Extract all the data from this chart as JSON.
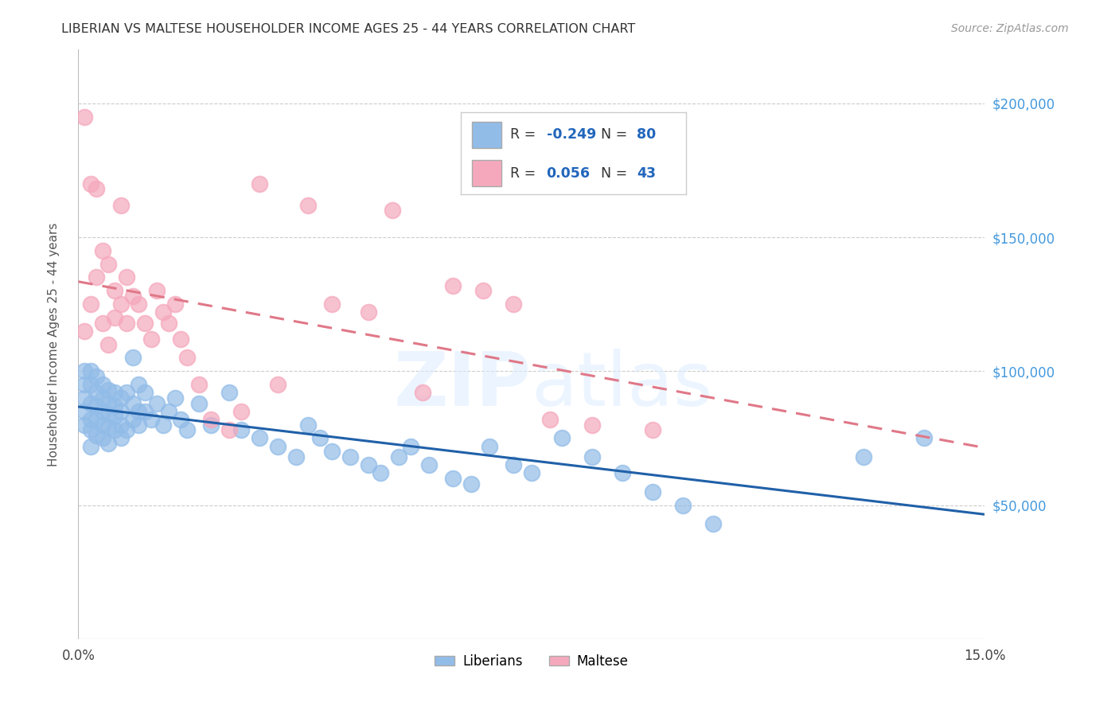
{
  "title": "LIBERIAN VS MALTESE HOUSEHOLDER INCOME AGES 25 - 44 YEARS CORRELATION CHART",
  "source": "Source: ZipAtlas.com",
  "ylabel_label": "Householder Income Ages 25 - 44 years",
  "ylabel_ticks": [
    0,
    50000,
    100000,
    150000,
    200000
  ],
  "ylabel_tick_labels": [
    "",
    "$50,000",
    "$100,000",
    "$150,000",
    "$200,000"
  ],
  "xmin": 0.0,
  "xmax": 0.15,
  "ymin": 0,
  "ymax": 220000,
  "liberian_R": -0.249,
  "liberian_N": 80,
  "maltese_R": 0.056,
  "maltese_N": 43,
  "liberian_color": "#92bce8",
  "maltese_color": "#f5a8bc",
  "liberian_line_color": "#2060a8",
  "maltese_line_color": "#e07888",
  "legend_label_1": "Liberians",
  "legend_label_2": "Maltese",
  "background_color": "#ffffff",
  "grid_color": "#cccccc",
  "watermark_zip": "ZIP",
  "watermark_atlas": "atlas",
  "liberian_x": [
    0.001,
    0.001,
    0.001,
    0.001,
    0.001,
    0.002,
    0.002,
    0.002,
    0.002,
    0.002,
    0.002,
    0.003,
    0.003,
    0.003,
    0.003,
    0.003,
    0.004,
    0.004,
    0.004,
    0.004,
    0.004,
    0.005,
    0.005,
    0.005,
    0.005,
    0.005,
    0.006,
    0.006,
    0.006,
    0.006,
    0.007,
    0.007,
    0.007,
    0.007,
    0.008,
    0.008,
    0.009,
    0.009,
    0.009,
    0.01,
    0.01,
    0.01,
    0.011,
    0.011,
    0.012,
    0.013,
    0.014,
    0.015,
    0.016,
    0.017,
    0.018,
    0.02,
    0.022,
    0.025,
    0.027,
    0.03,
    0.033,
    0.036,
    0.038,
    0.04,
    0.042,
    0.045,
    0.048,
    0.05,
    0.053,
    0.055,
    0.058,
    0.062,
    0.065,
    0.068,
    0.072,
    0.075,
    0.08,
    0.085,
    0.09,
    0.095,
    0.1,
    0.105,
    0.13,
    0.14
  ],
  "liberian_y": [
    100000,
    95000,
    90000,
    85000,
    80000,
    100000,
    95000,
    88000,
    82000,
    78000,
    72000,
    98000,
    92000,
    87000,
    82000,
    76000,
    95000,
    90000,
    85000,
    80000,
    75000,
    93000,
    88000,
    84000,
    79000,
    73000,
    92000,
    87000,
    83000,
    78000,
    90000,
    85000,
    80000,
    75000,
    92000,
    78000,
    105000,
    88000,
    82000,
    95000,
    85000,
    80000,
    92000,
    85000,
    82000,
    88000,
    80000,
    85000,
    90000,
    82000,
    78000,
    88000,
    80000,
    92000,
    78000,
    75000,
    72000,
    68000,
    80000,
    75000,
    70000,
    68000,
    65000,
    62000,
    68000,
    72000,
    65000,
    60000,
    58000,
    72000,
    65000,
    62000,
    75000,
    68000,
    62000,
    55000,
    50000,
    43000,
    68000,
    75000
  ],
  "maltese_x": [
    0.001,
    0.001,
    0.002,
    0.002,
    0.003,
    0.003,
    0.004,
    0.004,
    0.005,
    0.005,
    0.006,
    0.006,
    0.007,
    0.007,
    0.008,
    0.008,
    0.009,
    0.01,
    0.011,
    0.012,
    0.013,
    0.014,
    0.015,
    0.016,
    0.017,
    0.018,
    0.02,
    0.022,
    0.025,
    0.027,
    0.03,
    0.033,
    0.038,
    0.042,
    0.048,
    0.052,
    0.057,
    0.062,
    0.067,
    0.072,
    0.078,
    0.085,
    0.095
  ],
  "maltese_y": [
    195000,
    115000,
    170000,
    125000,
    168000,
    135000,
    145000,
    118000,
    140000,
    110000,
    130000,
    120000,
    162000,
    125000,
    135000,
    118000,
    128000,
    125000,
    118000,
    112000,
    130000,
    122000,
    118000,
    125000,
    112000,
    105000,
    95000,
    82000,
    78000,
    85000,
    170000,
    95000,
    162000,
    125000,
    122000,
    160000,
    92000,
    132000,
    130000,
    125000,
    82000,
    80000,
    78000
  ]
}
